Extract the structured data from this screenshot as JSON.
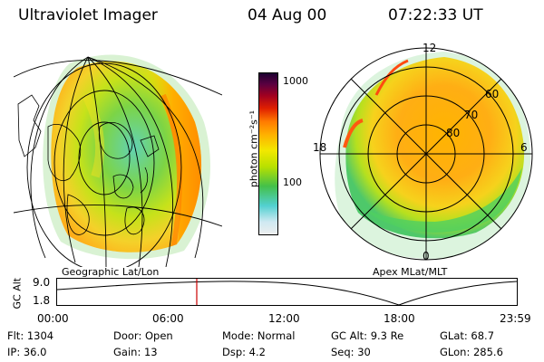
{
  "header": {
    "instrument": "Ultraviolet Imager",
    "date": "04 Aug 00",
    "time": "07:22:33 UT"
  },
  "colorbar": {
    "unit_label": "photon cm⁻²s⁻¹",
    "ticks": [
      {
        "label": "1000",
        "value": 1000
      },
      {
        "label": "100",
        "value": 100
      }
    ],
    "colors": [
      "#eeeeee",
      "#cfe9f2",
      "#52d0d0",
      "#44c04a",
      "#b8e000",
      "#f2e800",
      "#ffb000",
      "#ff7a00",
      "#e02000",
      "#a00020",
      "#5a0040",
      "#1a0030"
    ]
  },
  "geo_panel": {
    "label": "Geographic Lat/Lon"
  },
  "polar_panel": {
    "label": "Apex MLat/MLT",
    "mlt_labels": {
      "top": "12",
      "left": "18",
      "right": "6",
      "bottom": "0"
    },
    "lat_labels": [
      "60",
      "70",
      "80"
    ]
  },
  "altitude_plot": {
    "ylabel": "GC Alt",
    "ytick_labels": [
      "9.0",
      "1.8"
    ],
    "xtick_labels": [
      "00:00",
      "06:00",
      "12:00",
      "18:00",
      "23:59"
    ],
    "current_time_marker": "07:22",
    "marker_color": "#cc0000"
  },
  "footer": {
    "row1": {
      "flt": "Flt: 1304",
      "door": "Door: Open",
      "mode": "Mode: Normal",
      "gcalt": "GC Alt: 9.3 Re",
      "glat": "GLat:  68.7"
    },
    "row2": {
      "ip": "IP: 36.0",
      "gain": "Gain: 13",
      "dsp": "Dsp:     4.2",
      "seq": "Seq: 30",
      "glon": "GLon: 285.6"
    }
  }
}
